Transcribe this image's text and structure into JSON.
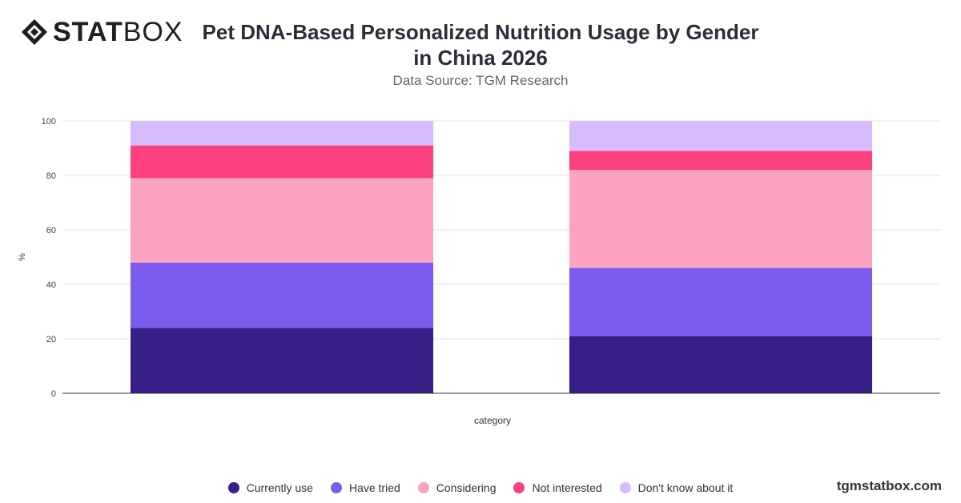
{
  "brand": {
    "logo_bold": "STAT",
    "logo_light": "BOX",
    "footer": "tgmstatbox.com"
  },
  "chart_data": {
    "type": "bar",
    "stacked": true,
    "title": "Pet DNA-Based Personalized Nutrition Usage by Gender in China 2026",
    "subtitle": "Data Source: TGM Research",
    "xlabel": "category",
    "ylabel": "%",
    "ylim": [
      0,
      100
    ],
    "yticks": [
      0,
      20,
      40,
      60,
      80,
      100
    ],
    "grid": true,
    "legend_position": "bottom",
    "categories": [
      "",
      ""
    ],
    "series": [
      {
        "name": "Currently use",
        "color": "#371f87",
        "values": [
          24,
          21
        ]
      },
      {
        "name": "Have tried",
        "color": "#7b5cee",
        "values": [
          24,
          25
        ]
      },
      {
        "name": "Considering",
        "color": "#fca3c3",
        "values": [
          31,
          36
        ]
      },
      {
        "name": "Not interested",
        "color": "#fc3f7f",
        "values": [
          12,
          7
        ]
      },
      {
        "name": "Don't know about it",
        "color": "#d6bcfc",
        "values": [
          9,
          11
        ]
      }
    ]
  }
}
